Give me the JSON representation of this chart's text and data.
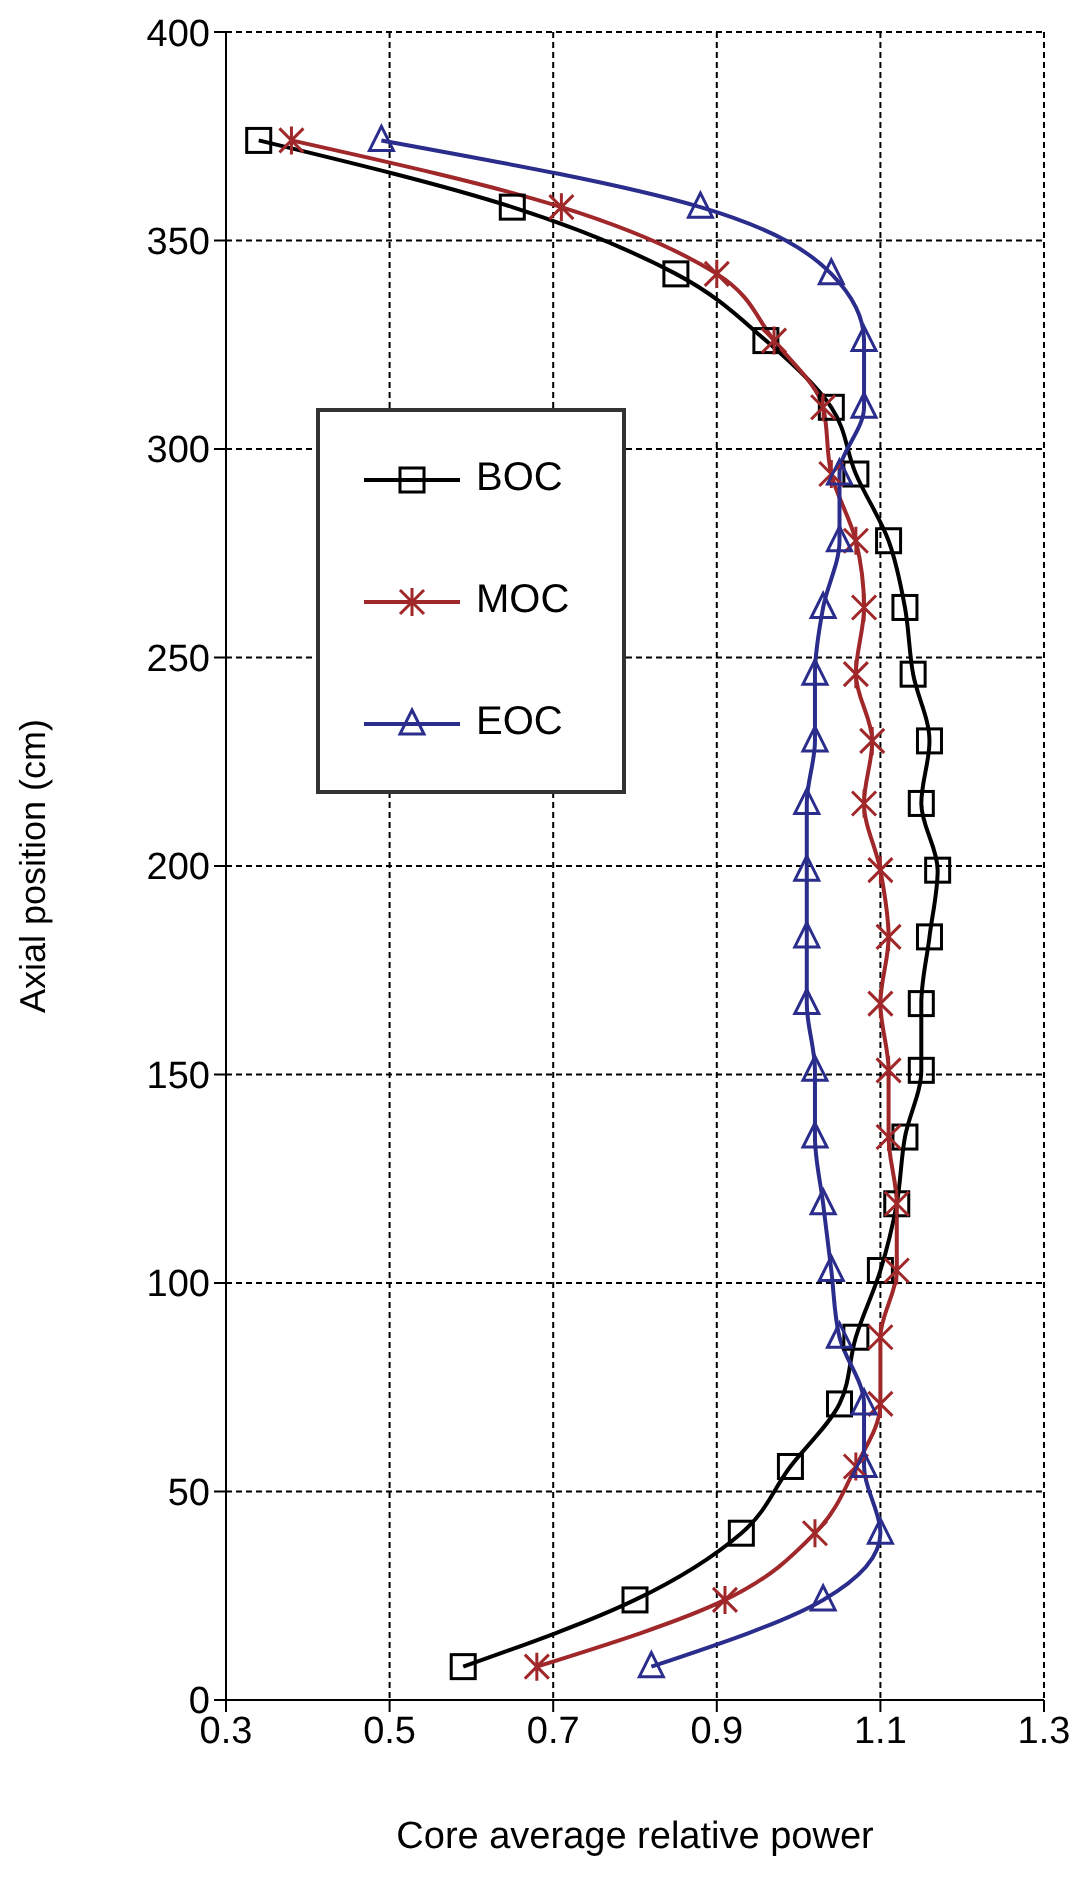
{
  "chart_data": {
    "type": "line",
    "xlabel": "Core average relative power",
    "ylabel": "Axial position (cm)",
    "xlim": [
      0.3,
      1.3
    ],
    "xticks": [
      0.3,
      0.5,
      0.7,
      0.9,
      1.1,
      1.3
    ],
    "ylim": [
      0,
      400
    ],
    "yticks": [
      0,
      50,
      100,
      150,
      200,
      250,
      300,
      350,
      400
    ],
    "grid": true,
    "legend": "left",
    "line_style": "solid",
    "series": [
      {
        "name": "BOC",
        "color": "#000000",
        "marker": "square",
        "x": [
          0.59,
          0.8,
          0.93,
          0.99,
          1.05,
          1.07,
          1.1,
          1.12,
          1.13,
          1.15,
          1.15,
          1.16,
          1.17,
          1.15,
          1.16,
          1.14,
          1.13,
          1.11,
          1.07,
          1.04,
          0.96,
          0.85,
          0.65,
          0.34
        ],
        "values": [
          8,
          24,
          40,
          56,
          71,
          87,
          103,
          119,
          135,
          151,
          167,
          183,
          199,
          215,
          230,
          246,
          262,
          278,
          294,
          310,
          326,
          342,
          358,
          374
        ]
      },
      {
        "name": "MOC",
        "color": "#a0282a",
        "marker": "cross",
        "x": [
          0.68,
          0.91,
          1.02,
          1.07,
          1.1,
          1.1,
          1.12,
          1.12,
          1.11,
          1.11,
          1.1,
          1.11,
          1.1,
          1.08,
          1.09,
          1.07,
          1.08,
          1.07,
          1.04,
          1.03,
          0.97,
          0.9,
          0.71,
          0.38
        ],
        "values": [
          8,
          24,
          40,
          56,
          71,
          87,
          103,
          119,
          135,
          151,
          167,
          183,
          199,
          215,
          230,
          246,
          262,
          278,
          294,
          310,
          326,
          342,
          358,
          374
        ]
      },
      {
        "name": "EOC",
        "color": "#2b2d8c",
        "marker": "triangle",
        "x": [
          0.82,
          1.03,
          1.1,
          1.08,
          1.08,
          1.05,
          1.04,
          1.03,
          1.02,
          1.02,
          1.01,
          1.01,
          1.01,
          1.01,
          1.02,
          1.02,
          1.03,
          1.05,
          1.05,
          1.08,
          1.08,
          1.04,
          0.88,
          0.49
        ],
        "values": [
          8,
          24,
          40,
          56,
          71,
          87,
          103,
          119,
          135,
          151,
          167,
          183,
          199,
          215,
          230,
          246,
          262,
          278,
          294,
          310,
          326,
          342,
          358,
          374
        ]
      }
    ]
  }
}
